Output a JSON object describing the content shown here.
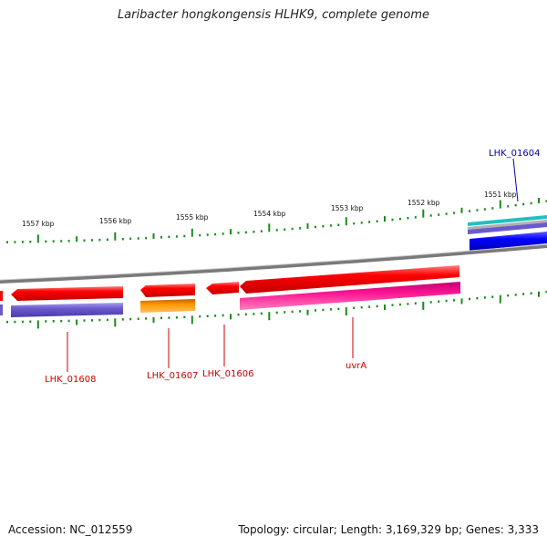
{
  "title": "Laribacter hongkongensis HLHK9, complete genome",
  "accession": "Accession: NC_012559",
  "topology": "Topology: circular; Length: 3,169,329 bp; Genes: 3,333",
  "ruler": {
    "labels": [
      "1557 kbp",
      "1556 kbp",
      "1555 kbp",
      "1554 kbp",
      "1553 kbp",
      "1552 kbp",
      "1551 kbp"
    ],
    "tick_color": "#1a8a1a"
  },
  "backbone_color": "#8a8a8a",
  "genes": [
    {
      "name": "LHK_01608",
      "color": "#cc0000"
    },
    {
      "name": "LHK_01607",
      "color": "#cc0000"
    },
    {
      "name": "LHK_01606",
      "color": "#cc0000"
    },
    {
      "name": "uvrA",
      "color": "#cc0000"
    },
    {
      "name": "LHK_01604",
      "color": "#0000aa"
    }
  ],
  "feature_colors": {
    "cds_red": "#ff0000",
    "blue_track": "#6a5acd",
    "orange_track": "#ff9900",
    "magenta_track": "#ff1493",
    "cyan_track": "#20c0c0",
    "deep_blue_track": "#0000ff"
  }
}
